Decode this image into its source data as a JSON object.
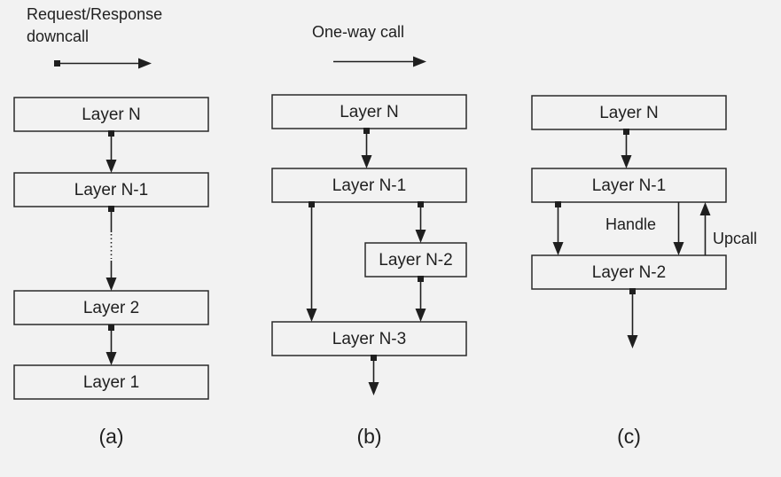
{
  "legend": {
    "request_response_line1": "Request/Response",
    "request_response_line2": "downcall",
    "one_way": "One-way call"
  },
  "diagram_a": {
    "layer_n": "Layer N",
    "layer_n1": "Layer N-1",
    "layer_2": "Layer 2",
    "layer_1": "Layer 1",
    "caption": "(a)"
  },
  "diagram_b": {
    "layer_n": "Layer N",
    "layer_n1": "Layer N-1",
    "layer_n2": "Layer N-2",
    "layer_n3": "Layer N-3",
    "caption": "(b)"
  },
  "diagram_c": {
    "layer_n": "Layer N",
    "layer_n1": "Layer N-1",
    "layer_n2": "Layer N-2",
    "handle": "Handle",
    "upcall": "Upcall",
    "caption": "(c)"
  }
}
